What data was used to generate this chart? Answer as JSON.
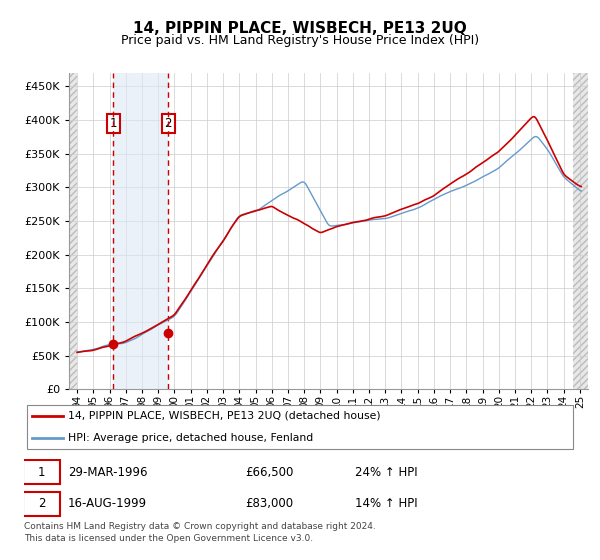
{
  "title": "14, PIPPIN PLACE, WISBECH, PE13 2UQ",
  "subtitle": "Price paid vs. HM Land Registry's House Price Index (HPI)",
  "legend_line1": "14, PIPPIN PLACE, WISBECH, PE13 2UQ (detached house)",
  "legend_line2": "HPI: Average price, detached house, Fenland",
  "transaction1_date": "29-MAR-1996",
  "transaction1_price": 66500,
  "transaction1_hpi_text": "24% ↑ HPI",
  "transaction1_year": 1996.23,
  "transaction2_date": "16-AUG-1999",
  "transaction2_price": 83000,
  "transaction2_hpi_text": "14% ↑ HPI",
  "transaction2_year": 1999.62,
  "footnote": "Contains HM Land Registry data © Crown copyright and database right 2024.\nThis data is licensed under the Open Government Licence v3.0.",
  "shade_color": "#dce9f5",
  "property_line_color": "#cc0000",
  "hpi_line_color": "#6699cc",
  "vline_color": "#cc0000",
  "hatch_facecolor": "#e8e8e8",
  "hatch_edgecolor": "#bbbbbb",
  "xlim_left": 1993.5,
  "xlim_right": 2025.5,
  "ylim_bottom": 0,
  "ylim_top": 470000,
  "yticks": [
    0,
    50000,
    100000,
    150000,
    200000,
    250000,
    300000,
    350000,
    400000,
    450000
  ],
  "xticks": [
    1994,
    1995,
    1996,
    1997,
    1998,
    1999,
    2000,
    2001,
    2002,
    2003,
    2004,
    2005,
    2006,
    2007,
    2008,
    2009,
    2010,
    2011,
    2012,
    2013,
    2014,
    2015,
    2016,
    2017,
    2018,
    2019,
    2020,
    2021,
    2022,
    2023,
    2024,
    2025
  ],
  "data_start_year": 1994.0,
  "hatch_right_start": 2024.58
}
